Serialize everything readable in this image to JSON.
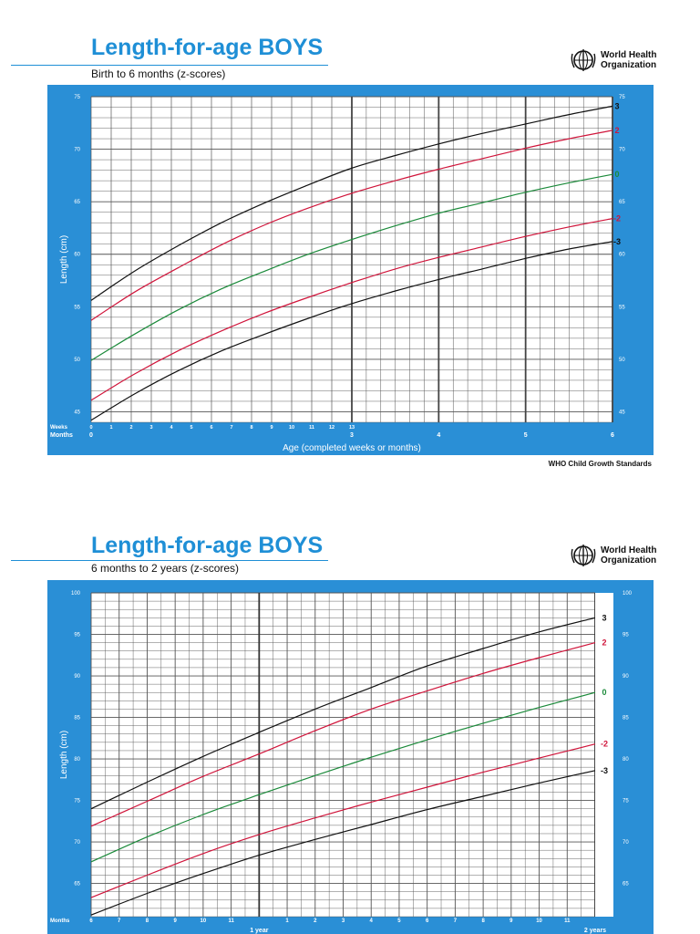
{
  "chart1": {
    "title": "Length-for-age BOYS",
    "subtitle": "Birth to 6 months (z-scores)",
    "org": [
      "World Health",
      "Organization"
    ],
    "footer": "WHO Child Growth Standards",
    "ylabel": "Length (cm)",
    "xlabel": "Age (completed weeks or months)",
    "row_label_weeks": "Weeks",
    "row_label_months": "Months",
    "colors": {
      "frame": "#2a8fd6",
      "black": "#111111",
      "red": "#d0153b",
      "green": "#1b8a3a"
    }
  },
  "chart2": {
    "title": "Length-for-age BOYS",
    "subtitle": "6 months to 2 years (z-scores)",
    "org": [
      "World Health",
      "Organization"
    ],
    "ylabel": "Length (cm)",
    "row_label_months": "Months",
    "year_labels": [
      "1 year",
      "2 years"
    ]
  },
  "chart_data": [
    {
      "type": "line",
      "x_unit": "months",
      "xlim": [
        0,
        6
      ],
      "ylim": [
        44,
        75
      ],
      "y_ticks": [
        45,
        50,
        55,
        60,
        65,
        70,
        75
      ],
      "week_ticks": [
        "0",
        "1",
        "2",
        "3",
        "4",
        "5",
        "6",
        "7",
        "8",
        "9",
        "10",
        "11",
        "12",
        "13"
      ],
      "month_ticks": [
        {
          "x": 0,
          "label": "0"
        },
        {
          "x": 3,
          "label": "3"
        },
        {
          "x": 4,
          "label": "4"
        },
        {
          "x": 5,
          "label": "5"
        },
        {
          "x": 6,
          "label": "6"
        }
      ],
      "x": [
        0,
        0.5,
        1,
        1.5,
        2,
        2.5,
        3,
        3.5,
        4,
        4.5,
        5,
        5.5,
        6
      ],
      "series": [
        {
          "name": "3",
          "color": "black",
          "values": [
            55.6,
            58.4,
            60.8,
            63.0,
            64.9,
            66.6,
            68.2,
            69.4,
            70.5,
            71.5,
            72.4,
            73.3,
            74.1
          ]
        },
        {
          "name": "2",
          "color": "red",
          "values": [
            53.7,
            56.4,
            58.7,
            60.9,
            62.8,
            64.4,
            65.8,
            67.0,
            68.1,
            69.1,
            70.1,
            71.0,
            71.8
          ]
        },
        {
          "name": "0",
          "color": "green",
          "values": [
            49.9,
            52.4,
            54.7,
            56.7,
            58.4,
            60.0,
            61.4,
            62.7,
            63.9,
            64.9,
            65.9,
            66.8,
            67.6
          ]
        },
        {
          "name": "-2",
          "color": "red",
          "values": [
            46.1,
            48.6,
            50.8,
            52.7,
            54.4,
            55.9,
            57.3,
            58.6,
            59.7,
            60.7,
            61.7,
            62.6,
            63.4
          ]
        },
        {
          "name": "-3",
          "color": "black",
          "values": [
            44.2,
            46.7,
            48.9,
            50.8,
            52.4,
            53.9,
            55.3,
            56.5,
            57.6,
            58.6,
            59.6,
            60.5,
            61.2
          ]
        }
      ]
    },
    {
      "type": "line",
      "x_unit": "months",
      "xlim": [
        6,
        24
      ],
      "ylim": [
        61,
        100
      ],
      "y_ticks": [
        65,
        70,
        75,
        80,
        85,
        90,
        95,
        100
      ],
      "month_ticks": [
        {
          "x": 6,
          "label": "6"
        },
        {
          "x": 7,
          "label": "7"
        },
        {
          "x": 8,
          "label": "8"
        },
        {
          "x": 9,
          "label": "9"
        },
        {
          "x": 10,
          "label": "10"
        },
        {
          "x": 11,
          "label": "11"
        },
        {
          "x": 13,
          "label": "1"
        },
        {
          "x": 14,
          "label": "2"
        },
        {
          "x": 15,
          "label": "3"
        },
        {
          "x": 16,
          "label": "4"
        },
        {
          "x": 17,
          "label": "5"
        },
        {
          "x": 18,
          "label": "6"
        },
        {
          "x": 19,
          "label": "7"
        },
        {
          "x": 20,
          "label": "8"
        },
        {
          "x": 21,
          "label": "9"
        },
        {
          "x": 22,
          "label": "10"
        },
        {
          "x": 23,
          "label": "11"
        }
      ],
      "year_ticks": [
        12,
        24
      ],
      "x": [
        6,
        8,
        10,
        12,
        14,
        16,
        18,
        20,
        22,
        24
      ],
      "series": [
        {
          "name": "3",
          "color": "black",
          "values": [
            74.0,
            77.2,
            80.3,
            83.2,
            86.0,
            88.6,
            91.2,
            93.3,
            95.3,
            97.0
          ]
        },
        {
          "name": "2",
          "color": "red",
          "values": [
            71.9,
            74.9,
            77.9,
            80.6,
            83.4,
            86.0,
            88.2,
            90.3,
            92.2,
            94.0
          ]
        },
        {
          "name": "0",
          "color": "green",
          "values": [
            67.6,
            70.6,
            73.3,
            75.7,
            78.0,
            80.2,
            82.3,
            84.3,
            86.2,
            88.0
          ]
        },
        {
          "name": "-2",
          "color": "red",
          "values": [
            63.3,
            66.0,
            68.6,
            70.9,
            72.9,
            74.8,
            76.6,
            78.4,
            80.1,
            81.8
          ]
        },
        {
          "name": "-3",
          "color": "black",
          "values": [
            61.2,
            63.8,
            66.2,
            68.4,
            70.3,
            72.1,
            73.9,
            75.5,
            77.1,
            78.6
          ]
        }
      ]
    }
  ]
}
